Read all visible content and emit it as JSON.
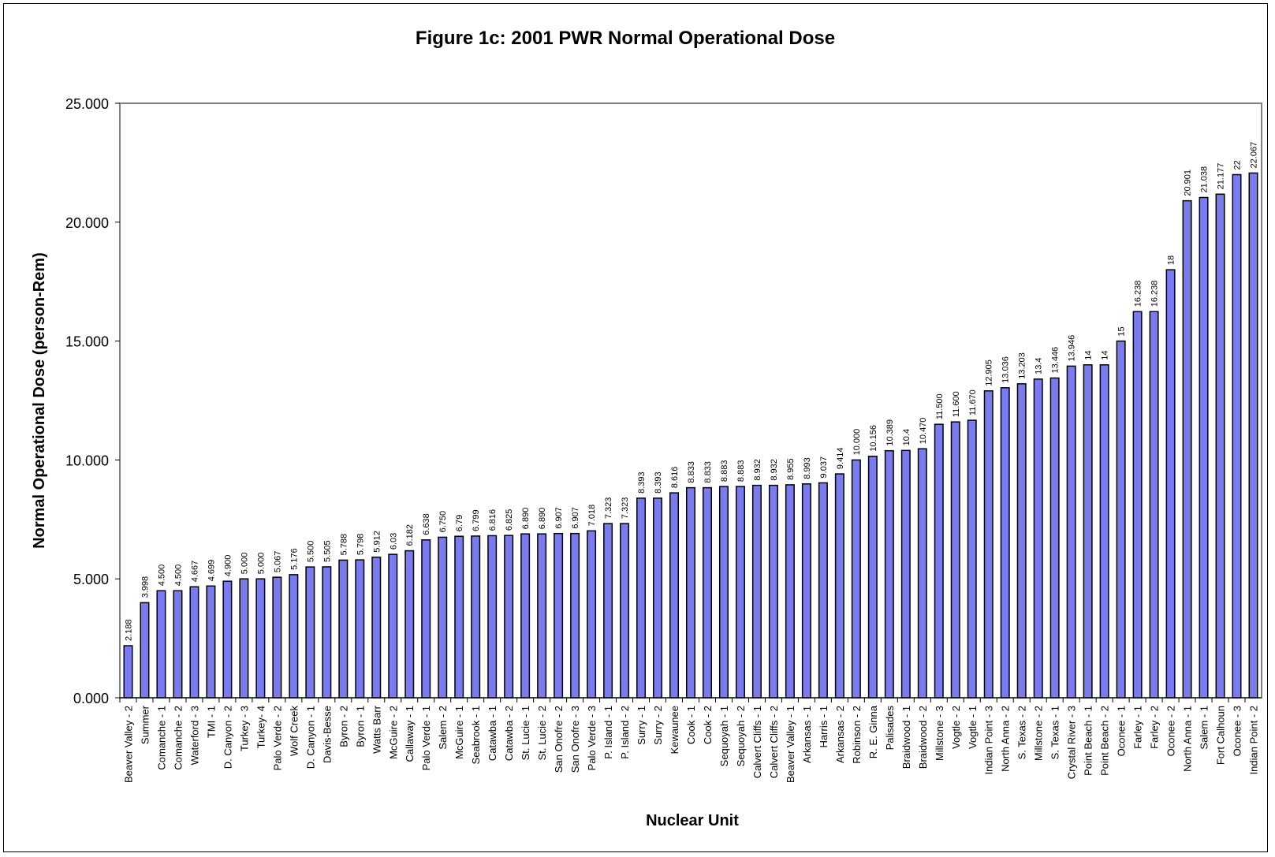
{
  "chart_data": {
    "type": "bar",
    "title": "Figure 1c: 2001 PWR Normal Operational Dose",
    "xlabel": "Nuclear Unit",
    "ylabel": "Normal Operational Dose (person-Rem)",
    "ylim": [
      0,
      25
    ],
    "yticks": [
      "0.000",
      "5.000",
      "10.000",
      "15.000",
      "20.000",
      "25.000"
    ],
    "grid": false,
    "legend": "none",
    "bar_color": "#7b7bf0",
    "bar_edge_color": "#000000",
    "categories": [
      "Beaver Valley - 2",
      "Summer",
      "Comanche - 1",
      "Comanche - 2",
      "Waterford - 3",
      "TMI - 1",
      "D. Canyon - 2",
      "Turkey - 3",
      "Turkey- 4",
      "Palo Verde - 2",
      "Wolf Creek",
      "D. Canyon - 1",
      "Davis-Besse",
      "Byron - 2",
      "Byron - 1",
      "Watts Barr",
      "McGuire - 2",
      "Callaway - 1",
      "Palo Verde - 1",
      "Salem - 2",
      "McGuire - 1",
      "Seabrook - 1",
      "Catawba - 1",
      "Catawba - 2",
      "St. Lucie - 1",
      "St. Lucie - 2",
      "San Onofre - 2",
      "San Onofre - 3",
      "Palo Verde - 3",
      "P. Island - 1",
      "P. Island - 2",
      "Surry - 1",
      "Surry - 2",
      "Kewaunee",
      "Cook - 1",
      "Cook - 2",
      "Sequoyah - 1",
      "Sequoyah - 2",
      "Calvert Cliffs - 1",
      "Calvert Cliffs - 2",
      "Beaver Valley - 1",
      "Arkansas - 1",
      "Harris - 1",
      "Arkansas - 2",
      "Robinson - 2",
      "R. E. Ginna",
      "Palisades",
      "Braidwood - 1",
      "Braidwood - 2",
      "Millstone - 3",
      "Vogtle - 2",
      "Vogtle - 1",
      "Indian Point - 3",
      "North Anna - 2",
      "S. Texas - 2",
      "Millstone - 2",
      "S. Texas - 1",
      "Crystal River - 3",
      "Point Beach - 1",
      "Point Beach - 2",
      "Oconee - 1",
      "Farley - 1",
      "Farley - 2",
      "Oconee - 2",
      "North Anna - 1",
      "Salem - 1",
      "Fort Calhoun",
      "Oconee - 3",
      "Indian Point - 2"
    ],
    "values": [
      2.188,
      3.998,
      4.5,
      4.5,
      4.667,
      4.699,
      4.9,
      5.0,
      5.0,
      5.067,
      5.176,
      5.5,
      5.505,
      5.788,
      5.798,
      5.912,
      6.03,
      6.182,
      6.638,
      6.75,
      6.79,
      6.799,
      6.816,
      6.825,
      6.89,
      6.89,
      6.907,
      6.907,
      7.018,
      7.323,
      7.323,
      8.393,
      8.393,
      8.616,
      8.833,
      8.833,
      8.883,
      8.883,
      8.932,
      8.932,
      8.955,
      8.993,
      9.037,
      9.414,
      10.0,
      10.156,
      10.389,
      10.4,
      10.47,
      11.5,
      11.6,
      11.67,
      12.905,
      13.036,
      13.203,
      13.4,
      13.446,
      13.946,
      14,
      14,
      15,
      16.238,
      16.238,
      18,
      20.901,
      21.038,
      21.177,
      22,
      22.067
    ],
    "data_labels": [
      "2.188",
      "3.998",
      "4.500",
      "4.500",
      "4.667",
      "4.699",
      "4.900",
      "5.000",
      "5.000",
      "5.067",
      "5.176",
      "5.500",
      "5.505",
      "5.788",
      "5.798",
      "5.912",
      "6.03",
      "6.182",
      "6.638",
      "6.750",
      "6.79",
      "6.799",
      "6.816",
      "6.825",
      "6.890",
      "6.890",
      "6.907",
      "6.907",
      "7.018",
      "7.323",
      "7.323",
      "8.393",
      "8.393",
      "8.616",
      "8.833",
      "8.833",
      "8.883",
      "8.883",
      "8.932",
      "8.932",
      "8.955",
      "8.993",
      "9.037",
      "9.414",
      "10.000",
      "10.156",
      "10.389",
      "10.4",
      "10.470",
      "11.500",
      "11.600",
      "11.670",
      "12.905",
      "13.036",
      "13.203",
      "13.4",
      "13.446",
      "13.946",
      "14",
      "14",
      "15",
      "16.238",
      "16.238",
      "18",
      "20.901",
      "21.038",
      "21.177",
      "22",
      "22.067"
    ]
  }
}
